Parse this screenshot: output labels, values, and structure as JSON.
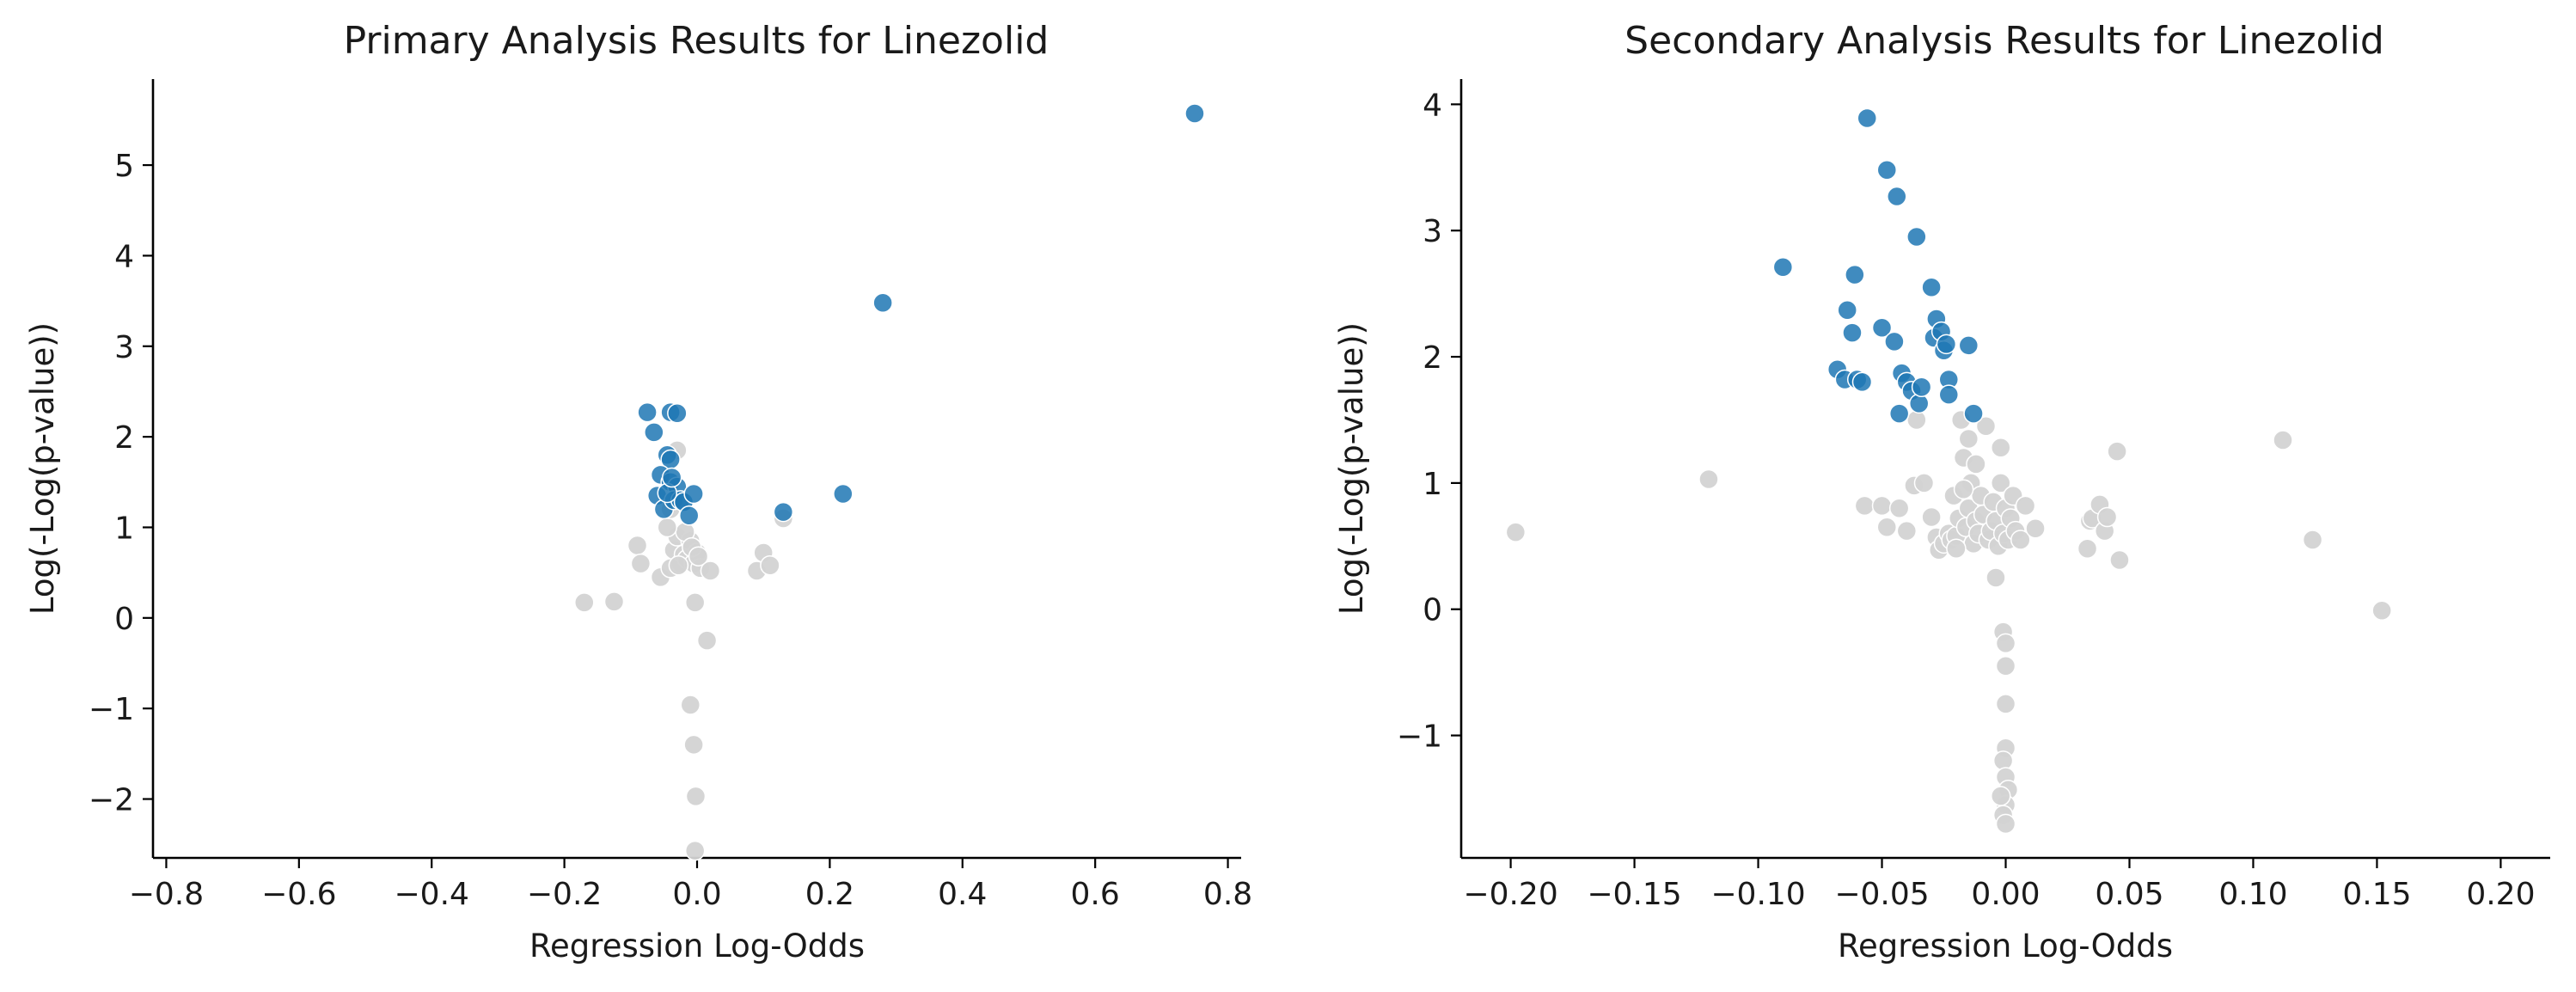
{
  "colors": {
    "significant": "#1f77b4",
    "nonsignificant": "#d3d3d3"
  },
  "chart_data": [
    {
      "type": "scatter",
      "title": "Primary Analysis Results for Linezolid",
      "xlabel": "Regression Log-Odds",
      "ylabel": "Log(-Log(p-value))",
      "xlim": [
        -0.82,
        0.82
      ],
      "ylim": [
        -2.65,
        5.95
      ],
      "xticks": [
        -0.8,
        -0.6,
        -0.4,
        -0.2,
        0.0,
        0.2,
        0.4,
        0.6,
        0.8
      ],
      "xtick_labels": [
        "−0.8",
        "−0.6",
        "−0.4",
        "−0.2",
        "0.0",
        "0.2",
        "0.4",
        "0.6",
        "0.8"
      ],
      "yticks": [
        -2,
        -1,
        0,
        1,
        2,
        3,
        4,
        5
      ],
      "ytick_labels": [
        "−2",
        "−1",
        "0",
        "1",
        "2",
        "3",
        "4",
        "5"
      ],
      "series": [
        {
          "name": "Not significant",
          "color": "#d3d3d3",
          "points": [
            [
              -0.17,
              0.17
            ],
            [
              -0.125,
              0.18
            ],
            [
              -0.09,
              0.8
            ],
            [
              -0.085,
              0.6
            ],
            [
              -0.055,
              0.45
            ],
            [
              -0.04,
              0.55
            ],
            [
              -0.035,
              0.75
            ],
            [
              -0.03,
              0.9
            ],
            [
              -0.025,
              0.6
            ],
            [
              -0.02,
              0.7
            ],
            [
              -0.015,
              0.65
            ],
            [
              -0.01,
              0.85
            ],
            [
              -0.005,
              0.6
            ],
            [
              0.0,
              0.72
            ],
            [
              0.005,
              0.55
            ],
            [
              -0.028,
              0.58
            ],
            [
              -0.018,
              0.95
            ],
            [
              -0.045,
              1.0
            ],
            [
              -0.008,
              0.78
            ],
            [
              0.002,
              0.68
            ],
            [
              0.02,
              0.52
            ],
            [
              0.09,
              0.52
            ],
            [
              0.1,
              0.72
            ],
            [
              0.11,
              0.58
            ],
            [
              0.13,
              1.1
            ],
            [
              -0.003,
              0.17
            ],
            [
              0.015,
              -0.25
            ],
            [
              -0.01,
              -0.96
            ],
            [
              -0.005,
              -1.4
            ],
            [
              -0.002,
              -1.97
            ],
            [
              -0.003,
              -2.57
            ],
            [
              -0.03,
              1.85
            ],
            [
              -0.04,
              1.2
            ]
          ]
        },
        {
          "name": "Significant",
          "color": "#1f77b4",
          "points": [
            [
              -0.075,
              2.27
            ],
            [
              -0.065,
              2.05
            ],
            [
              -0.04,
              2.27
            ],
            [
              -0.03,
              2.26
            ],
            [
              -0.045,
              1.8
            ],
            [
              -0.04,
              1.75
            ],
            [
              -0.055,
              1.58
            ],
            [
              -0.06,
              1.35
            ],
            [
              -0.05,
              1.2
            ],
            [
              -0.04,
              1.5
            ],
            [
              -0.03,
              1.45
            ],
            [
              -0.035,
              1.3
            ],
            [
              -0.025,
              1.3
            ],
            [
              -0.02,
              1.28
            ],
            [
              -0.005,
              1.37
            ],
            [
              -0.012,
              1.13
            ],
            [
              -0.045,
              1.38
            ],
            [
              -0.038,
              1.55
            ],
            [
              0.13,
              1.17
            ],
            [
              0.22,
              1.37
            ],
            [
              0.28,
              3.48
            ],
            [
              0.75,
              5.57
            ]
          ]
        }
      ]
    },
    {
      "type": "scatter",
      "title": "Secondary Analysis Results for Linezolid",
      "xlabel": "Regression Log-Odds",
      "ylabel": "Log(-Log(p-value))",
      "xlim": [
        -0.22,
        0.22
      ],
      "ylim": [
        -1.97,
        4.2
      ],
      "xticks": [
        -0.2,
        -0.15,
        -0.1,
        -0.05,
        0.0,
        0.05,
        0.1,
        0.15,
        0.2
      ],
      "xtick_labels": [
        "−0.20",
        "−0.15",
        "−0.10",
        "−0.05",
        "0.00",
        "0.05",
        "0.10",
        "0.15",
        "0.20"
      ],
      "yticks": [
        -1,
        0,
        1,
        2,
        3,
        4
      ],
      "ytick_labels": [
        "−1",
        "0",
        "1",
        "2",
        "3",
        "4"
      ],
      "series": [
        {
          "name": "Not significant",
          "color": "#d3d3d3",
          "points": [
            [
              -0.198,
              0.61
            ],
            [
              -0.12,
              1.03
            ],
            [
              -0.057,
              0.82
            ],
            [
              -0.05,
              0.82
            ],
            [
              -0.048,
              0.65
            ],
            [
              -0.043,
              0.8
            ],
            [
              -0.04,
              0.62
            ],
            [
              -0.037,
              0.98
            ],
            [
              -0.036,
              1.5
            ],
            [
              -0.033,
              1.0
            ],
            [
              -0.03,
              0.73
            ],
            [
              -0.028,
              0.57
            ],
            [
              -0.027,
              0.47
            ],
            [
              -0.025,
              0.52
            ],
            [
              -0.023,
              0.6
            ],
            [
              -0.022,
              0.55
            ],
            [
              -0.021,
              0.9
            ],
            [
              -0.02,
              0.58
            ],
            [
              -0.019,
              0.72
            ],
            [
              -0.018,
              1.5
            ],
            [
              -0.017,
              1.2
            ],
            [
              -0.016,
              0.65
            ],
            [
              -0.015,
              0.8
            ],
            [
              -0.014,
              1.0
            ],
            [
              -0.013,
              0.52
            ],
            [
              -0.012,
              0.7
            ],
            [
              -0.011,
              0.6
            ],
            [
              -0.01,
              0.9
            ],
            [
              -0.009,
              0.75
            ],
            [
              -0.008,
              1.45
            ],
            [
              -0.007,
              0.55
            ],
            [
              -0.006,
              0.62
            ],
            [
              -0.005,
              0.85
            ],
            [
              -0.004,
              0.7
            ],
            [
              -0.003,
              0.5
            ],
            [
              -0.002,
              1.0
            ],
            [
              -0.001,
              0.6
            ],
            [
              0.0,
              0.8
            ],
            [
              0.001,
              0.55
            ],
            [
              0.002,
              0.72
            ],
            [
              0.003,
              0.9
            ],
            [
              0.004,
              0.62
            ],
            [
              0.006,
              0.55
            ],
            [
              0.008,
              0.82
            ],
            [
              0.012,
              0.64
            ],
            [
              -0.015,
              1.35
            ],
            [
              -0.012,
              1.15
            ],
            [
              -0.017,
              0.95
            ],
            [
              -0.002,
              1.28
            ],
            [
              -0.004,
              0.25
            ],
            [
              -0.02,
              0.48
            ],
            [
              0.033,
              0.48
            ],
            [
              0.034,
              0.7
            ],
            [
              0.035,
              0.72
            ],
            [
              0.038,
              0.83
            ],
            [
              0.04,
              0.62
            ],
            [
              0.041,
              0.73
            ],
            [
              0.045,
              1.25
            ],
            [
              0.046,
              0.39
            ],
            [
              0.112,
              1.34
            ],
            [
              0.124,
              0.55
            ],
            [
              0.152,
              -0.01
            ],
            [
              -0.001,
              -0.18
            ],
            [
              0.0,
              -0.27
            ],
            [
              0.0,
              -0.45
            ],
            [
              0.0,
              -0.75
            ],
            [
              0.0,
              -1.1
            ],
            [
              -0.001,
              -1.2
            ],
            [
              0.0,
              -1.33
            ],
            [
              0.001,
              -1.43
            ],
            [
              0.0,
              -1.55
            ],
            [
              -0.001,
              -1.63
            ],
            [
              0.0,
              -1.7
            ],
            [
              -0.002,
              -1.48
            ]
          ]
        },
        {
          "name": "Significant",
          "color": "#1f77b4",
          "points": [
            [
              -0.09,
              2.71
            ],
            [
              -0.068,
              1.9
            ],
            [
              -0.065,
              1.82
            ],
            [
              -0.064,
              2.37
            ],
            [
              -0.062,
              2.19
            ],
            [
              -0.061,
              2.65
            ],
            [
              -0.06,
              1.82
            ],
            [
              -0.058,
              1.8
            ],
            [
              -0.056,
              3.89
            ],
            [
              -0.05,
              2.23
            ],
            [
              -0.048,
              3.48
            ],
            [
              -0.045,
              2.12
            ],
            [
              -0.044,
              3.27
            ],
            [
              -0.043,
              1.55
            ],
            [
              -0.042,
              1.87
            ],
            [
              -0.04,
              1.8
            ],
            [
              -0.038,
              1.73
            ],
            [
              -0.036,
              2.95
            ],
            [
              -0.035,
              1.63
            ],
            [
              -0.034,
              1.76
            ],
            [
              -0.03,
              2.55
            ],
            [
              -0.029,
              2.15
            ],
            [
              -0.028,
              2.3
            ],
            [
              -0.026,
              2.2
            ],
            [
              -0.025,
              2.05
            ],
            [
              -0.024,
              2.1
            ],
            [
              -0.023,
              1.82
            ],
            [
              -0.023,
              1.7
            ],
            [
              -0.015,
              2.09
            ],
            [
              -0.013,
              1.55
            ]
          ]
        }
      ]
    }
  ]
}
